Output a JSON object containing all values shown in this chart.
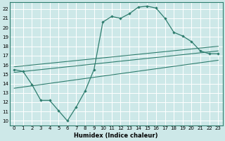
{
  "title": "",
  "xlabel": "Humidex (Indice chaleur)",
  "ylabel": "",
  "bg_color": "#cde8e8",
  "grid_color": "#ffffff",
  "line_color": "#2e7d6e",
  "xlim": [
    -0.5,
    23.5
  ],
  "ylim": [
    9.5,
    22.7
  ],
  "xticks": [
    0,
    1,
    2,
    3,
    4,
    5,
    6,
    7,
    8,
    9,
    10,
    11,
    12,
    13,
    14,
    15,
    16,
    17,
    18,
    19,
    20,
    21,
    22,
    23
  ],
  "yticks": [
    10,
    11,
    12,
    13,
    14,
    15,
    16,
    17,
    18,
    19,
    20,
    21,
    22
  ],
  "curve1_x": [
    0,
    1,
    2,
    3,
    4,
    5,
    6,
    7,
    8,
    9,
    10,
    11,
    12,
    13,
    14,
    15,
    16,
    17,
    18,
    19,
    20,
    21,
    22,
    23
  ],
  "curve1_y": [
    15.5,
    15.3,
    13.9,
    12.2,
    12.2,
    11.1,
    10.0,
    11.5,
    13.2,
    15.5,
    20.6,
    21.2,
    21.0,
    21.5,
    22.2,
    22.3,
    22.1,
    21.0,
    19.5,
    19.1,
    18.5,
    17.5,
    17.2,
    17.2
  ],
  "line1_x": [
    0,
    23
  ],
  "line1_y": [
    15.8,
    18.0
  ],
  "line2_x": [
    0,
    23
  ],
  "line2_y": [
    15.2,
    17.5
  ],
  "line3_x": [
    0,
    23
  ],
  "line3_y": [
    13.5,
    16.5
  ]
}
